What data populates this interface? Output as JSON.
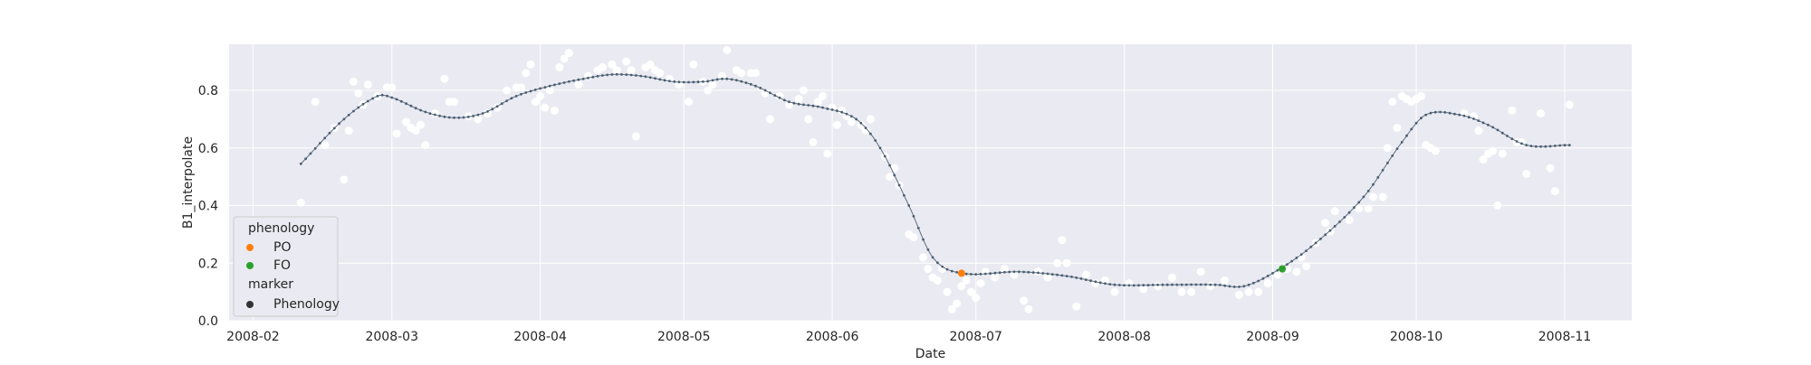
{
  "chart_data": {
    "type": "scatter",
    "title": "",
    "xlabel": "Date",
    "ylabel": "B1_interpolate",
    "xlim": [
      "2008-01-27",
      "2008-11-15"
    ],
    "ylim": [
      0.0,
      0.96
    ],
    "grid": true,
    "x_ticks": [
      "2008-02",
      "2008-03",
      "2008-04",
      "2008-05",
      "2008-06",
      "2008-07",
      "2008-08",
      "2008-09",
      "2008-10",
      "2008-11"
    ],
    "y_ticks": [
      "0.0",
      "0.2",
      "0.4",
      "0.6",
      "0.8"
    ],
    "legend": {
      "placement": "lower left",
      "phenology_title": "phenology",
      "marker_title": "marker",
      "entries": [
        {
          "label": "PO",
          "color": "#ff7f0e"
        },
        {
          "label": "FO",
          "color": "#2ca02c"
        },
        {
          "label": "Phenology",
          "color": "#333333"
        }
      ]
    },
    "colors": {
      "background": "#eaeaf2",
      "grid": "#ffffff",
      "raw_points": "#ffffff",
      "line": "#5a6e7f",
      "dot": "#4a5f70"
    },
    "interpolated_knots": [
      [
        "2008-02-11",
        0.545
      ],
      [
        "2008-02-20",
        0.7
      ],
      [
        "2008-02-27",
        0.78
      ],
      [
        "2008-03-01",
        0.775
      ],
      [
        "2008-03-08",
        0.725
      ],
      [
        "2008-03-14",
        0.705
      ],
      [
        "2008-03-20",
        0.72
      ],
      [
        "2008-03-27",
        0.78
      ],
      [
        "2008-04-03",
        0.815
      ],
      [
        "2008-04-10",
        0.84
      ],
      [
        "2008-04-16",
        0.855
      ],
      [
        "2008-04-22",
        0.85
      ],
      [
        "2008-04-29",
        0.83
      ],
      [
        "2008-05-05",
        0.83
      ],
      [
        "2008-05-10",
        0.84
      ],
      [
        "2008-05-16",
        0.815
      ],
      [
        "2008-05-23",
        0.76
      ],
      [
        "2008-05-30",
        0.74
      ],
      [
        "2008-06-06",
        0.7
      ],
      [
        "2008-06-11",
        0.6
      ],
      [
        "2008-06-17",
        0.4
      ],
      [
        "2008-06-22",
        0.22
      ],
      [
        "2008-06-28",
        0.165
      ],
      [
        "2008-07-10",
        0.17
      ],
      [
        "2008-07-20",
        0.155
      ],
      [
        "2008-07-30",
        0.125
      ],
      [
        "2008-08-10",
        0.125
      ],
      [
        "2008-08-20",
        0.125
      ],
      [
        "2008-08-26",
        0.12
      ],
      [
        "2008-09-02",
        0.175
      ],
      [
        "2008-09-10",
        0.27
      ],
      [
        "2008-09-20",
        0.43
      ],
      [
        "2008-09-28",
        0.62
      ],
      [
        "2008-10-03",
        0.715
      ],
      [
        "2008-10-10",
        0.715
      ],
      [
        "2008-10-16",
        0.68
      ],
      [
        "2008-10-24",
        0.61
      ],
      [
        "2008-11-02",
        0.61
      ]
    ],
    "raw_points": [
      [
        "2008-02-11",
        0.41
      ],
      [
        "2008-02-14",
        0.76
      ],
      [
        "2008-02-16",
        0.61
      ],
      [
        "2008-02-18",
        0.67
      ],
      [
        "2008-02-20",
        0.49
      ],
      [
        "2008-02-21",
        0.66
      ],
      [
        "2008-02-22",
        0.83
      ],
      [
        "2008-02-23",
        0.79
      ],
      [
        "2008-02-24",
        0.75
      ],
      [
        "2008-02-25",
        0.82
      ],
      [
        "2008-02-27",
        0.78
      ],
      [
        "2008-02-29",
        0.81
      ],
      [
        "2008-03-01",
        0.81
      ],
      [
        "2008-03-02",
        0.65
      ],
      [
        "2008-03-04",
        0.69
      ],
      [
        "2008-03-05",
        0.67
      ],
      [
        "2008-03-06",
        0.66
      ],
      [
        "2008-03-07",
        0.68
      ],
      [
        "2008-03-08",
        0.61
      ],
      [
        "2008-03-10",
        0.72
      ],
      [
        "2008-03-12",
        0.84
      ],
      [
        "2008-03-13",
        0.76
      ],
      [
        "2008-03-14",
        0.76
      ],
      [
        "2008-03-17",
        0.71
      ],
      [
        "2008-03-19",
        0.7
      ],
      [
        "2008-03-21",
        0.72
      ],
      [
        "2008-03-23",
        0.74
      ],
      [
        "2008-03-25",
        0.8
      ],
      [
        "2008-03-27",
        0.81
      ],
      [
        "2008-03-28",
        0.81
      ],
      [
        "2008-03-29",
        0.86
      ],
      [
        "2008-03-30",
        0.89
      ],
      [
        "2008-03-31",
        0.76
      ],
      [
        "2008-04-01",
        0.78
      ],
      [
        "2008-04-02",
        0.74
      ],
      [
        "2008-04-03",
        0.8
      ],
      [
        "2008-04-04",
        0.73
      ],
      [
        "2008-04-05",
        0.88
      ],
      [
        "2008-04-06",
        0.91
      ],
      [
        "2008-04-07",
        0.93
      ],
      [
        "2008-04-09",
        0.82
      ],
      [
        "2008-04-11",
        0.85
      ],
      [
        "2008-04-13",
        0.87
      ],
      [
        "2008-04-14",
        0.88
      ],
      [
        "2008-04-16",
        0.89
      ],
      [
        "2008-04-17",
        0.87
      ],
      [
        "2008-04-19",
        0.9
      ],
      [
        "2008-04-20",
        0.87
      ],
      [
        "2008-04-21",
        0.64
      ],
      [
        "2008-04-23",
        0.88
      ],
      [
        "2008-04-24",
        0.89
      ],
      [
        "2008-04-25",
        0.87
      ],
      [
        "2008-04-26",
        0.86
      ],
      [
        "2008-04-28",
        0.84
      ],
      [
        "2008-04-30",
        0.82
      ],
      [
        "2008-05-02",
        0.76
      ],
      [
        "2008-05-03",
        0.89
      ],
      [
        "2008-05-05",
        0.83
      ],
      [
        "2008-05-06",
        0.8
      ],
      [
        "2008-05-07",
        0.82
      ],
      [
        "2008-05-09",
        0.85
      ],
      [
        "2008-05-10",
        0.94
      ],
      [
        "2008-05-12",
        0.87
      ],
      [
        "2008-05-13",
        0.86
      ],
      [
        "2008-05-15",
        0.86
      ],
      [
        "2008-05-16",
        0.86
      ],
      [
        "2008-05-18",
        0.79
      ],
      [
        "2008-05-19",
        0.7
      ],
      [
        "2008-05-21",
        0.78
      ],
      [
        "2008-05-23",
        0.75
      ],
      [
        "2008-05-25",
        0.77
      ],
      [
        "2008-05-26",
        0.8
      ],
      [
        "2008-05-27",
        0.7
      ],
      [
        "2008-05-28",
        0.62
      ],
      [
        "2008-05-29",
        0.76
      ],
      [
        "2008-05-30",
        0.78
      ],
      [
        "2008-05-31",
        0.58
      ],
      [
        "2008-06-01",
        0.74
      ],
      [
        "2008-06-02",
        0.68
      ],
      [
        "2008-06-03",
        0.73
      ],
      [
        "2008-06-04",
        0.71
      ],
      [
        "2008-06-05",
        0.69
      ],
      [
        "2008-06-07",
        0.68
      ],
      [
        "2008-06-08",
        0.66
      ],
      [
        "2008-06-09",
        0.7
      ],
      [
        "2008-06-12",
        0.57
      ],
      [
        "2008-06-13",
        0.5
      ],
      [
        "2008-06-14",
        0.53
      ],
      [
        "2008-06-15",
        0.47
      ],
      [
        "2008-06-17",
        0.3
      ],
      [
        "2008-06-18",
        0.29
      ],
      [
        "2008-06-20",
        0.22
      ],
      [
        "2008-06-21",
        0.18
      ],
      [
        "2008-06-22",
        0.15
      ],
      [
        "2008-06-23",
        0.14
      ],
      [
        "2008-06-24",
        0.18
      ],
      [
        "2008-06-25",
        0.1
      ],
      [
        "2008-06-26",
        0.04
      ],
      [
        "2008-06-27",
        0.06
      ],
      [
        "2008-06-28",
        0.12
      ],
      [
        "2008-06-29",
        0.14
      ],
      [
        "2008-06-30",
        0.1
      ],
      [
        "2008-07-01",
        0.08
      ],
      [
        "2008-07-02",
        0.13
      ],
      [
        "2008-07-03",
        0.17
      ],
      [
        "2008-07-05",
        0.15
      ],
      [
        "2008-07-07",
        0.18
      ],
      [
        "2008-07-09",
        0.16
      ],
      [
        "2008-07-11",
        0.07
      ],
      [
        "2008-07-12",
        0.04
      ],
      [
        "2008-07-14",
        0.17
      ],
      [
        "2008-07-16",
        0.15
      ],
      [
        "2008-07-18",
        0.2
      ],
      [
        "2008-07-19",
        0.28
      ],
      [
        "2008-07-20",
        0.2
      ],
      [
        "2008-07-22",
        0.05
      ],
      [
        "2008-07-24",
        0.16
      ],
      [
        "2008-07-26",
        0.13
      ],
      [
        "2008-07-28",
        0.14
      ],
      [
        "2008-07-30",
        0.1
      ],
      [
        "2008-08-02",
        0.13
      ],
      [
        "2008-08-05",
        0.11
      ],
      [
        "2008-08-08",
        0.12
      ],
      [
        "2008-08-11",
        0.15
      ],
      [
        "2008-08-13",
        0.1
      ],
      [
        "2008-08-15",
        0.1
      ],
      [
        "2008-08-17",
        0.17
      ],
      [
        "2008-08-19",
        0.12
      ],
      [
        "2008-08-22",
        0.14
      ],
      [
        "2008-08-25",
        0.09
      ],
      [
        "2008-08-27",
        0.1
      ],
      [
        "2008-08-29",
        0.1
      ],
      [
        "2008-08-31",
        0.13
      ],
      [
        "2008-09-02",
        0.16
      ],
      [
        "2008-09-04",
        0.18
      ],
      [
        "2008-09-06",
        0.17
      ],
      [
        "2008-09-07",
        0.22
      ],
      [
        "2008-09-08",
        0.19
      ],
      [
        "2008-09-10",
        0.27
      ],
      [
        "2008-09-12",
        0.34
      ],
      [
        "2008-09-13",
        0.31
      ],
      [
        "2008-09-14",
        0.38
      ],
      [
        "2008-09-17",
        0.35
      ],
      [
        "2008-09-19",
        0.39
      ],
      [
        "2008-09-21",
        0.39
      ],
      [
        "2008-09-22",
        0.43
      ],
      [
        "2008-09-24",
        0.43
      ],
      [
        "2008-09-25",
        0.6
      ],
      [
        "2008-09-26",
        0.76
      ],
      [
        "2008-09-27",
        0.67
      ],
      [
        "2008-09-28",
        0.78
      ],
      [
        "2008-09-29",
        0.77
      ],
      [
        "2008-09-30",
        0.76
      ],
      [
        "2008-10-01",
        0.77
      ],
      [
        "2008-10-02",
        0.78
      ],
      [
        "2008-10-03",
        0.61
      ],
      [
        "2008-10-04",
        0.6
      ],
      [
        "2008-10-05",
        0.59
      ],
      [
        "2008-10-11",
        0.72
      ],
      [
        "2008-10-13",
        0.71
      ],
      [
        "2008-10-14",
        0.66
      ],
      [
        "2008-10-15",
        0.56
      ],
      [
        "2008-10-16",
        0.58
      ],
      [
        "2008-10-17",
        0.59
      ],
      [
        "2008-10-18",
        0.4
      ],
      [
        "2008-10-19",
        0.58
      ],
      [
        "2008-10-21",
        0.73
      ],
      [
        "2008-10-22",
        0.62
      ],
      [
        "2008-10-23",
        0.62
      ],
      [
        "2008-10-24",
        0.51
      ],
      [
        "2008-10-27",
        0.72
      ],
      [
        "2008-10-29",
        0.53
      ],
      [
        "2008-10-30",
        0.45
      ],
      [
        "2008-11-02",
        0.75
      ]
    ],
    "phenology_points": [
      {
        "label": "PO",
        "date": "2008-06-28",
        "value": 0.165,
        "color": "#ff7f0e"
      },
      {
        "label": "FO",
        "date": "2008-09-03",
        "value": 0.18,
        "color": "#2ca02c"
      }
    ]
  }
}
